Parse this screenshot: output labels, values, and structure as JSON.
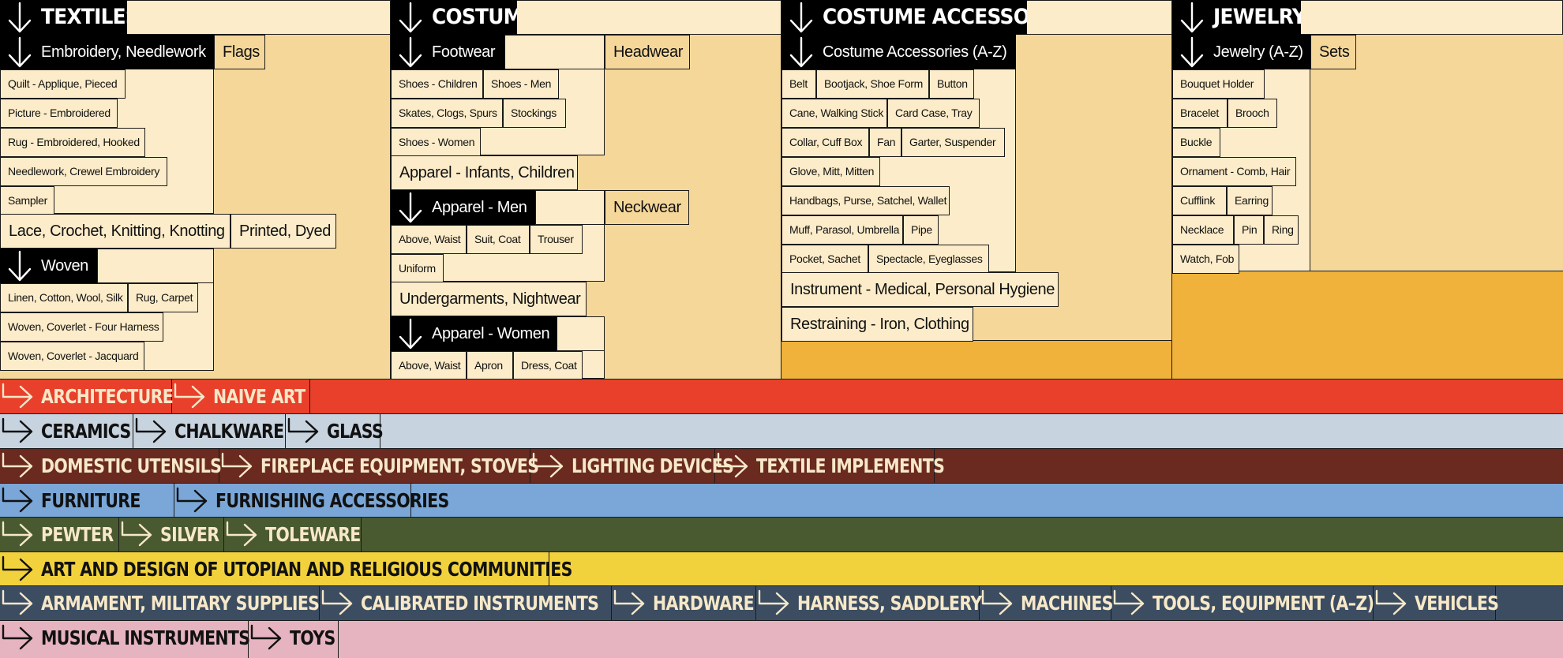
{
  "colors": {
    "light": "#fcecc9",
    "mid": "#f5d79a",
    "orange": "#f0b23a",
    "black": "#000000"
  },
  "textiles": {
    "title": "TEXTILES",
    "embroidery": {
      "label": "Embroidery, Needlework",
      "items": [
        "Quilt - Applique, Pieced",
        "Picture - Embroidered",
        "Rug - Embroidered, Hooked",
        "Needlework, Crewel Embroidery",
        "Sampler"
      ]
    },
    "flags": "Flags",
    "lace": "Lace, Crochet, Knitting, Knotting",
    "printed": "Printed, Dyed",
    "woven": {
      "label": "Woven",
      "items": [
        "Linen, Cotton, Wool, Silk",
        "Rug, Carpet",
        "Woven, Coverlet - Four Harness",
        "Woven, Coverlet - Jacquard"
      ]
    }
  },
  "costume": {
    "title": "COSTUME",
    "footwear": {
      "label": "Footwear",
      "items": [
        "Shoes - Children",
        "Shoes - Men",
        "Skates, Clogs, Spurs",
        "Stockings",
        "Shoes - Women"
      ]
    },
    "headwear": "Headwear",
    "apparel_infants": "Apparel - Infants, Children",
    "apparel_men": {
      "label": "Apparel - Men",
      "items": [
        "Above, Waist",
        "Suit, Coat",
        "Trouser",
        "Uniform"
      ]
    },
    "neckwear": "Neckwear",
    "undergarments": "Undergarments, Nightwear",
    "apparel_women": {
      "label": "Apparel - Women",
      "items": [
        "Above, Waist",
        "Apron",
        "Dress, Coat"
      ]
    }
  },
  "accessories": {
    "title": "COSTUME ACCESSORIES",
    "az": {
      "label": "Costume Accessories (A-Z)",
      "items": [
        "Belt",
        "Bootjack, Shoe Form",
        "Button",
        "Cane, Walking Stick",
        "Card Case, Tray",
        "Collar, Cuff Box",
        "Fan",
        "Garter, Suspender",
        "Glove, Mitt, Mitten",
        "Handbags, Purse, Satchel, Wallet",
        "Muff, Parasol, Umbrella",
        "Pipe",
        "Pocket, Sachet",
        "Spectacle, Eyeglasses"
      ]
    },
    "instrument": "Instrument - Medical, Personal Hygiene",
    "restraining": "Restraining - Iron, Clothing"
  },
  "jewelry": {
    "title": "JEWELRY",
    "az": {
      "label": "Jewelry (A-Z)",
      "items": [
        "Bouquet Holder",
        "Bracelet",
        "Brooch",
        "Buckle",
        "Ornament - Comb, Hair",
        "Cufflink",
        "Earring",
        "Necklace",
        "Pin",
        "Ring",
        "Watch, Fob"
      ]
    },
    "sets": "Sets"
  },
  "bands": [
    {
      "color": "#e8402b",
      "text_color": "#f6e8c8",
      "items": [
        "ARCHITECTURE",
        "NAIVE ART"
      ]
    },
    {
      "color": "#c7d3df",
      "text_color": "#111111",
      "items": [
        "CERAMICS",
        "CHALKWARE",
        "GLASS"
      ]
    },
    {
      "color": "#6a2a20",
      "text_color": "#f6e8c8",
      "items": [
        "DOMESTIC UTENSILS",
        "FIREPLACE EQUIPMENT, STOVES",
        "LIGHTING DEVICES",
        "TEXTILE IMPLEMENTS"
      ]
    },
    {
      "color": "#7aa7d8",
      "text_color": "#111111",
      "items": [
        "FURNITURE",
        "FURNISHING ACCESSORIES"
      ]
    },
    {
      "color": "#4a5a30",
      "text_color": "#f6e8c8",
      "items": [
        "PEWTER",
        "SILVER",
        "TOLEWARE"
      ]
    },
    {
      "color": "#f2d23c",
      "text_color": "#111111",
      "items": [
        "ART AND DESIGN OF UTOPIAN AND RELIGIOUS COMMUNITIES"
      ]
    },
    {
      "color": "#3c4d62",
      "text_color": "#f6e8c8",
      "items": [
        "ARMAMENT, MILITARY SUPPLIES",
        "CALIBRATED INSTRUMENTS",
        "HARDWARE",
        "HARNESS, SADDLERY",
        "MACHINES",
        "TOOLS, EQUIPMENT (A–Z)",
        "VEHICLES"
      ]
    },
    {
      "color": "#e6b3c0",
      "text_color": "#111111",
      "items": [
        "MUSICAL INSTRUMENTS",
        "TOYS"
      ]
    }
  ]
}
